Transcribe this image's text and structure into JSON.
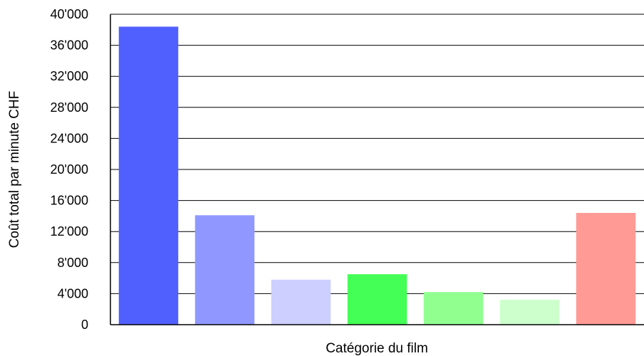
{
  "chart_data": {
    "type": "bar",
    "title": "",
    "xlabel": "Catégorie du film",
    "ylabel": "Coût total par minute CHF",
    "ylim": [
      0,
      40000
    ],
    "yticks": [
      0,
      4000,
      8000,
      12000,
      16000,
      20000,
      24000,
      28000,
      32000,
      36000,
      40000
    ],
    "ytick_labels": [
      "0",
      "4'000",
      "8'000",
      "12'000",
      "16'000",
      "20'000",
      "24'000",
      "28'000",
      "32'000",
      "36'000",
      "40'000"
    ],
    "grid": true,
    "legend": "none",
    "values": [
      38400,
      14100,
      5800,
      6500,
      4200,
      3200,
      14400
    ],
    "colors": [
      "#5060ff",
      "#9098ff",
      "#cccfff",
      "#44ff55",
      "#90ff90",
      "#ccffcc",
      "#ff9a95"
    ]
  }
}
